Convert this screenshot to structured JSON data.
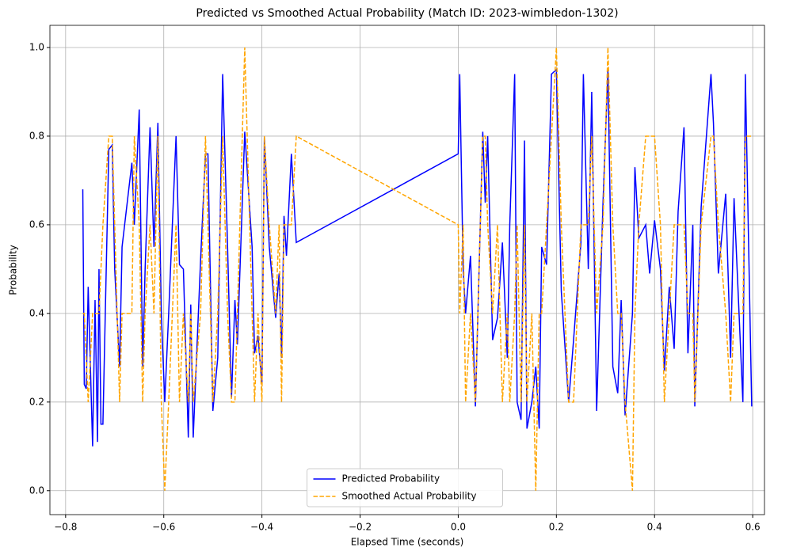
{
  "chart_data": {
    "type": "line",
    "title": "Predicted vs Smoothed Actual Probability (Match ID: 2023-wimbledon-1302)",
    "x_label": "Elapsed Time (seconds)",
    "y_label": "Probability",
    "xlim": [
      -0.832,
      0.624
    ],
    "ylim": [
      -0.054,
      1.05
    ],
    "xticks": [
      {
        "value": -0.8,
        "label": "−0.8"
      },
      {
        "value": -0.6,
        "label": "−0.6"
      },
      {
        "value": -0.4,
        "label": "−0.4"
      },
      {
        "value": -0.2,
        "label": "−0.2"
      },
      {
        "value": 0,
        "label": "0.0"
      },
      0.2,
      0.4,
      0.6
    ],
    "yticks": [
      {
        "value": 0,
        "label": "0.0"
      },
      0.2,
      0.4,
      0.6,
      0.8,
      {
        "value": 1,
        "label": "1.0"
      }
    ],
    "grid": true,
    "legend": "lower center",
    "x": [
      -0.765,
      -0.762,
      -0.758,
      -0.754,
      -0.745,
      -0.74,
      -0.735,
      -0.732,
      -0.728,
      -0.724,
      -0.712,
      -0.705,
      -0.7,
      -0.69,
      -0.685,
      -0.665,
      -0.66,
      -0.65,
      -0.643,
      -0.638,
      -0.628,
      -0.62,
      -0.612,
      -0.605,
      -0.598,
      -0.59,
      -0.575,
      -0.568,
      -0.56,
      -0.55,
      -0.545,
      -0.54,
      -0.525,
      -0.515,
      -0.51,
      -0.5,
      -0.49,
      -0.48,
      -0.47,
      -0.462,
      -0.455,
      -0.45,
      -0.435,
      -0.42,
      -0.415,
      -0.408,
      -0.4,
      -0.395,
      -0.385,
      -0.372,
      -0.365,
      -0.36,
      -0.355,
      -0.35,
      -0.34,
      -0.33,
      0,
      0.003,
      0.01,
      0.015,
      0.025,
      0.035,
      0.05,
      0.055,
      0.06,
      0.07,
      0.08,
      0.09,
      0.1,
      0.105,
      0.115,
      0.12,
      0.128,
      0.135,
      0.14,
      0.15,
      0.158,
      0.165,
      0.17,
      0.18,
      0.19,
      0.2,
      0.21,
      0.225,
      0.235,
      0.25,
      0.255,
      0.265,
      0.272,
      0.282,
      0.295,
      0.305,
      0.315,
      0.325,
      0.332,
      0.34,
      0.355,
      0.36,
      0.368,
      0.382,
      0.39,
      0.4,
      0.412,
      0.42,
      0.43,
      0.44,
      0.448,
      0.46,
      0.468,
      0.478,
      0.482,
      0.495,
      0.515,
      0.52,
      0.53,
      0.545,
      0.555,
      0.562,
      0.58,
      0.585,
      0.598
    ],
    "series": [
      {
        "name": "Predicted Probability",
        "color": "#0000ff",
        "style": "solid",
        "values": [
          0.68,
          0.24,
          0.23,
          0.46,
          0.1,
          0.43,
          0.11,
          0.5,
          0.15,
          0.15,
          0.77,
          0.78,
          0.5,
          0.28,
          0.55,
          0.74,
          0.6,
          0.86,
          0.28,
          0.5,
          0.82,
          0.55,
          0.83,
          0.4,
          0.2,
          0.4,
          0.8,
          0.51,
          0.5,
          0.12,
          0.42,
          0.12,
          0.52,
          0.76,
          0.76,
          0.18,
          0.3,
          0.94,
          0.55,
          0.21,
          0.43,
          0.33,
          0.81,
          0.55,
          0.31,
          0.35,
          0.24,
          0.8,
          0.55,
          0.39,
          0.49,
          0.3,
          0.62,
          0.53,
          0.76,
          0.56,
          0.76,
          0.94,
          0.5,
          0.4,
          0.53,
          0.19,
          0.81,
          0.65,
          0.8,
          0.34,
          0.39,
          0.56,
          0.3,
          0.6,
          0.94,
          0.2,
          0.16,
          0.79,
          0.14,
          0.2,
          0.28,
          0.14,
          0.55,
          0.51,
          0.94,
          0.95,
          0.45,
          0.2,
          0.34,
          0.56,
          0.94,
          0.5,
          0.9,
          0.18,
          0.65,
          0.95,
          0.28,
          0.22,
          0.43,
          0.17,
          0.4,
          0.73,
          0.57,
          0.6,
          0.49,
          0.61,
          0.5,
          0.27,
          0.46,
          0.32,
          0.63,
          0.82,
          0.31,
          0.6,
          0.19,
          0.64,
          0.94,
          0.83,
          0.49,
          0.67,
          0.3,
          0.66,
          0.2,
          0.94,
          0.19
        ]
      },
      {
        "name": "Smoothed Actual Probability",
        "color": "#ffa500",
        "style": "dashed",
        "values": [
          0.4,
          0.4,
          0.3,
          0.2,
          0.4,
          0.4,
          0.4,
          0.4,
          0.5,
          0.6,
          0.8,
          0.8,
          0.6,
          0.2,
          0.4,
          0.4,
          0.8,
          0.6,
          0.2,
          0.4,
          0.6,
          0.4,
          0.8,
          0.2,
          0,
          0.2,
          0.6,
          0.2,
          0.4,
          0.2,
          0.4,
          0.2,
          0.4,
          0.8,
          0.6,
          0.2,
          0.4,
          0.8,
          0.4,
          0.2,
          0.2,
          0.4,
          1,
          0.4,
          0.2,
          0.4,
          0.2,
          0.8,
          0.6,
          0.4,
          0.6,
          0.2,
          0.6,
          0.6,
          0.6,
          0.8,
          0.6,
          0.4,
          0.6,
          0.2,
          0.4,
          0.2,
          0.8,
          0.8,
          0.6,
          0.4,
          0.6,
          0.2,
          0.4,
          0.2,
          0.4,
          0.6,
          0.2,
          0.6,
          0.2,
          0.4,
          0,
          0.4,
          0.4,
          0.6,
          0.8,
          1,
          0.6,
          0.2,
          0.2,
          0.6,
          0.6,
          0.6,
          0.8,
          0.4,
          0.6,
          1,
          0.6,
          0.4,
          0.4,
          0.2,
          0,
          0.4,
          0.6,
          0.8,
          0.8,
          0.8,
          0.6,
          0.2,
          0.4,
          0.6,
          0.6,
          0.6,
          0.4,
          0.4,
          0.2,
          0.6,
          0.8,
          0.8,
          0.6,
          0.4,
          0.2,
          0.4,
          0.4,
          0.8,
          0.8
        ]
      }
    ]
  }
}
